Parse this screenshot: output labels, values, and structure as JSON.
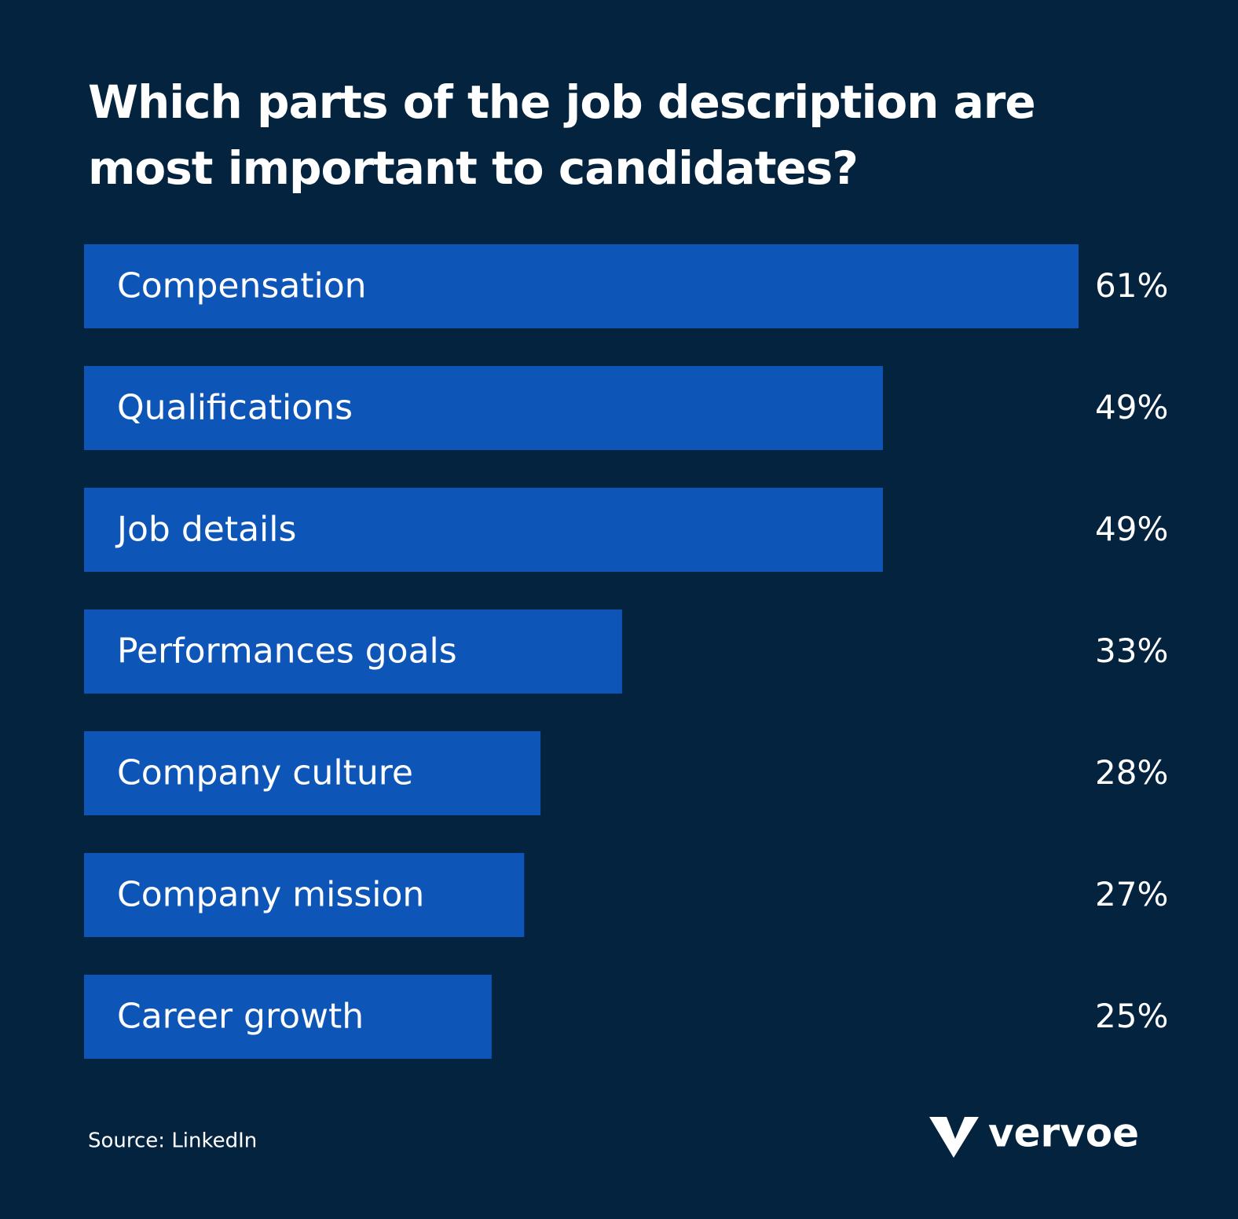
{
  "chart_data": {
    "type": "bar",
    "orientation": "horizontal",
    "title": "Which parts of the job description are most important to candidates?",
    "categories": [
      "Compensation",
      "Qualifications",
      "Job details",
      "Performances goals",
      "Company culture",
      "Company mission",
      "Career growth"
    ],
    "values": [
      61,
      49,
      49,
      33,
      28,
      27,
      25
    ],
    "value_labels": [
      "61%",
      "49%",
      "49%",
      "33%",
      "28%",
      "27%",
      "25%"
    ],
    "color": "#0d56b8",
    "source": "Source: LinkedIn",
    "logo": "vervoe"
  }
}
